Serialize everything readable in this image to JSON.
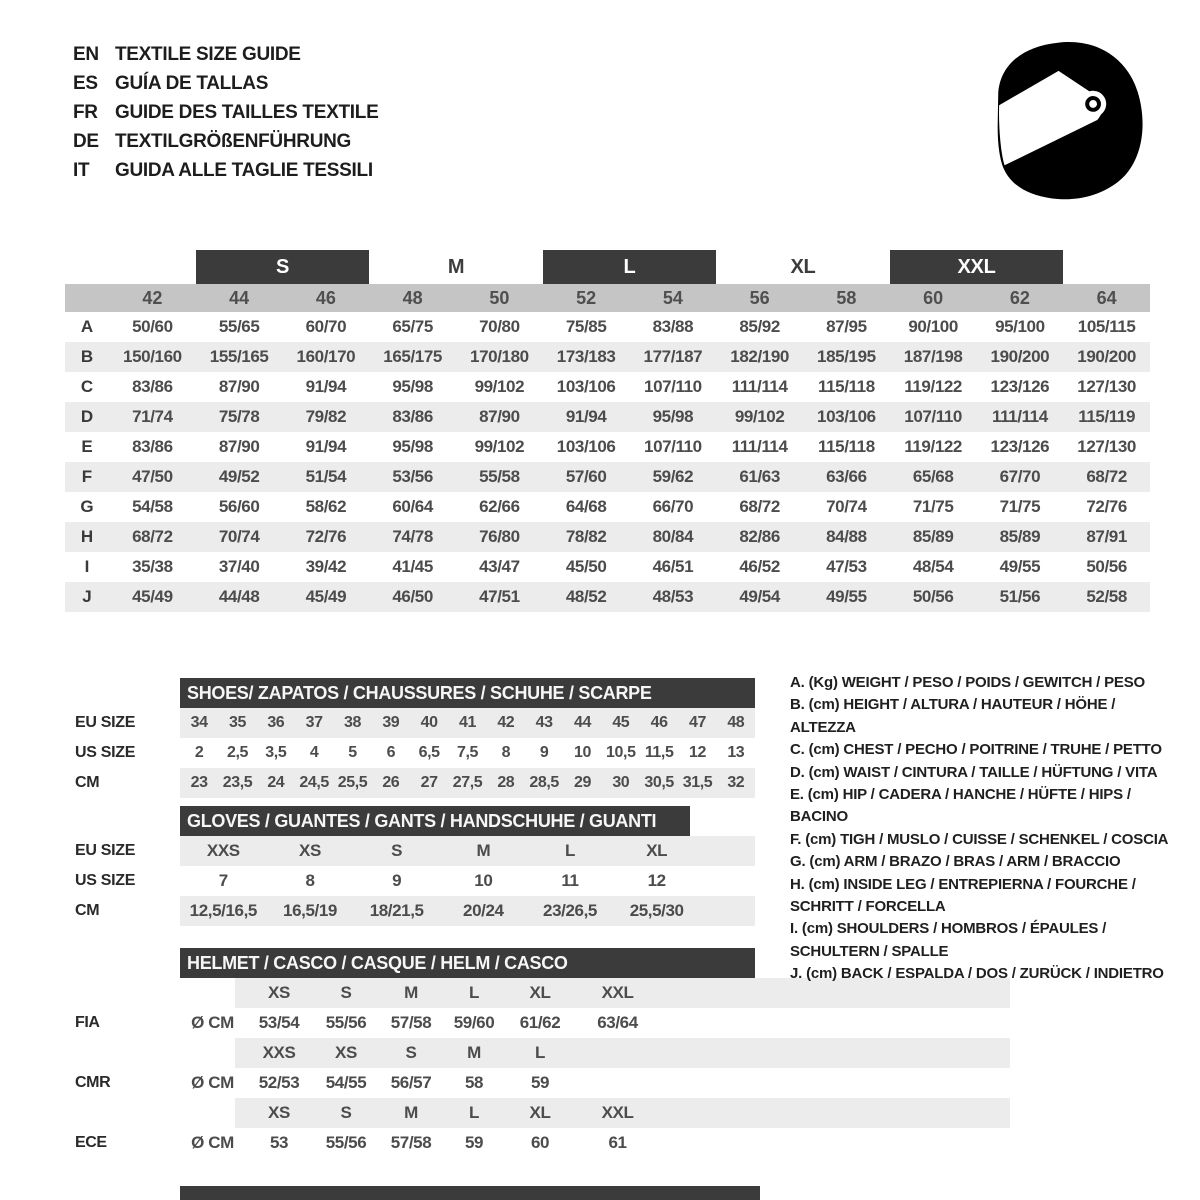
{
  "header": {
    "languages": [
      {
        "code": "EN",
        "title": "TEXTILE SIZE GUIDE"
      },
      {
        "code": "ES",
        "title": "GUÍA DE TALLAS"
      },
      {
        "code": "FR",
        "title": "GUIDE DES TAILLES TEXTILE"
      },
      {
        "code": "DE",
        "title": "TEXTILGRÖßENFÜHRUNG"
      },
      {
        "code": "IT",
        "title": "GUIDA ALLE TAGLIE TESSILI"
      }
    ],
    "icon": "racing-helmet"
  },
  "colors": {
    "dark_bar": "#3b3b3b",
    "number_band": "#c5c5c5",
    "row_stripe": "#ececec"
  },
  "main_table": {
    "size_groups": [
      {
        "label": "S",
        "style": "dark",
        "span_cols": [
          2,
          3
        ]
      },
      {
        "label": "M",
        "style": "plain",
        "span_cols": [
          4,
          5
        ]
      },
      {
        "label": "L",
        "style": "dark",
        "span_cols": [
          6,
          7
        ]
      },
      {
        "label": "XL",
        "style": "plain",
        "span_cols": [
          8,
          9
        ]
      },
      {
        "label": "XXL",
        "style": "dark",
        "span_cols": [
          10,
          11
        ]
      }
    ],
    "numeric_sizes": [
      "42",
      "44",
      "46",
      "48",
      "50",
      "52",
      "54",
      "56",
      "58",
      "60",
      "62",
      "64"
    ],
    "rows": [
      {
        "label": "A",
        "values": [
          "50/60",
          "55/65",
          "60/70",
          "65/75",
          "70/80",
          "75/85",
          "83/88",
          "85/92",
          "87/95",
          "90/100",
          "95/100",
          "105/115"
        ]
      },
      {
        "label": "B",
        "values": [
          "150/160",
          "155/165",
          "160/170",
          "165/175",
          "170/180",
          "173/183",
          "177/187",
          "182/190",
          "185/195",
          "187/198",
          "190/200",
          "190/200"
        ]
      },
      {
        "label": "C",
        "values": [
          "83/86",
          "87/90",
          "91/94",
          "95/98",
          "99/102",
          "103/106",
          "107/110",
          "111/114",
          "115/118",
          "119/122",
          "123/126",
          "127/130"
        ]
      },
      {
        "label": "D",
        "values": [
          "71/74",
          "75/78",
          "79/82",
          "83/86",
          "87/90",
          "91/94",
          "95/98",
          "99/102",
          "103/106",
          "107/110",
          "111/114",
          "115/119"
        ]
      },
      {
        "label": "E",
        "values": [
          "83/86",
          "87/90",
          "91/94",
          "95/98",
          "99/102",
          "103/106",
          "107/110",
          "111/114",
          "115/118",
          "119/122",
          "123/126",
          "127/130"
        ]
      },
      {
        "label": "F",
        "values": [
          "47/50",
          "49/52",
          "51/54",
          "53/56",
          "55/58",
          "57/60",
          "59/62",
          "61/63",
          "63/66",
          "65/68",
          "67/70",
          "68/72"
        ]
      },
      {
        "label": "G",
        "values": [
          "54/58",
          "56/60",
          "58/62",
          "60/64",
          "62/66",
          "64/68",
          "66/70",
          "68/72",
          "70/74",
          "71/75",
          "71/75",
          "72/76"
        ]
      },
      {
        "label": "H",
        "values": [
          "68/72",
          "70/74",
          "72/76",
          "74/78",
          "76/80",
          "78/82",
          "80/84",
          "82/86",
          "84/88",
          "85/89",
          "85/89",
          "87/91"
        ]
      },
      {
        "label": "I",
        "values": [
          "35/38",
          "37/40",
          "39/42",
          "41/45",
          "43/47",
          "45/50",
          "46/51",
          "46/52",
          "47/53",
          "48/54",
          "49/55",
          "50/56"
        ]
      },
      {
        "label": "J",
        "values": [
          "45/49",
          "44/48",
          "45/49",
          "46/50",
          "47/51",
          "48/52",
          "48/53",
          "49/54",
          "49/55",
          "50/56",
          "51/56",
          "52/58"
        ]
      }
    ]
  },
  "shoes": {
    "title": "SHOES/ ZAPATOS / CHAUSSURES / SCHUHE / SCARPE",
    "rows": [
      {
        "label": "EU SIZE",
        "stripe": true,
        "values": [
          "34",
          "35",
          "36",
          "37",
          "38",
          "39",
          "40",
          "41",
          "42",
          "43",
          "44",
          "45",
          "46",
          "47",
          "48"
        ]
      },
      {
        "label": "US SIZE",
        "stripe": false,
        "values": [
          "2",
          "2,5",
          "3,5",
          "4",
          "5",
          "6",
          "6,5",
          "7,5",
          "8",
          "9",
          "10",
          "10,5",
          "11,5",
          "12",
          "13"
        ]
      },
      {
        "label": "CM",
        "stripe": true,
        "values": [
          "23",
          "23,5",
          "24",
          "24,5",
          "25,5",
          "26",
          "27",
          "27,5",
          "28",
          "28,5",
          "29",
          "30",
          "30,5",
          "31,5",
          "32"
        ]
      }
    ]
  },
  "gloves": {
    "title": "GLOVES / GUANTES / GANTS / HANDSCHUHE / GUANTI",
    "rows": [
      {
        "label": "EU SIZE",
        "stripe": true,
        "values": [
          "XXS",
          "XS",
          "S",
          "M",
          "L",
          "XL"
        ]
      },
      {
        "label": "US SIZE",
        "stripe": false,
        "values": [
          "7",
          "8",
          "9",
          "10",
          "11",
          "12"
        ]
      },
      {
        "label": "CM",
        "stripe": true,
        "values": [
          "12,5/16,5",
          "16,5/19",
          "18/21,5",
          "20/24",
          "23/26,5",
          "25,5/30"
        ]
      }
    ]
  },
  "helmet": {
    "title": "HELMET / CASCO / CASQUE / HELM / CASCO",
    "standards": [
      {
        "label": "FIA",
        "unit": "Ø CM",
        "sizes": [
          "XS",
          "S",
          "M",
          "L",
          "XL",
          "XXL"
        ],
        "values": [
          "53/54",
          "55/56",
          "57/58",
          "59/60",
          "61/62",
          "63/64"
        ]
      },
      {
        "label": "CMR",
        "unit": "Ø CM",
        "sizes": [
          "XXS",
          "XS",
          "S",
          "M",
          "L",
          ""
        ],
        "values": [
          "52/53",
          "54/55",
          "56/57",
          "58",
          "59",
          ""
        ]
      },
      {
        "label": "ECE",
        "unit": "Ø CM",
        "sizes": [
          "XS",
          "S",
          "M",
          "L",
          "XL",
          "XXL"
        ],
        "values": [
          "53",
          "55/56",
          "57/58",
          "59",
          "60",
          "61"
        ]
      }
    ]
  },
  "legend": {
    "items": [
      "A. (Kg) WEIGHT / PESO / POIDS / GEWITCH / PESO",
      "B. (cm) HEIGHT / ALTURA / HAUTEUR / HÖHE / ALTEZZA",
      "C. (cm) CHEST / PECHO / POITRINE / TRUHE / PETTO",
      "D. (cm) WAIST / CINTURA / TAILLE / HÜFTUNG / VITA",
      "E. (cm) HIP / CADERA / HANCHE / HÜFTE / HIPS / BACINO",
      "F. (cm) TIGH / MUSLO / CUISSE / SCHENKEL / COSCIA",
      "G. (cm) ARM / BRAZO / BRAS / ARM / BRACCIO",
      "H. (cm) INSIDE LEG / ENTREPIERNA / FOURCHE / SCHRITT / FORCELLA",
      "I. (cm) SHOULDERS / HOMBROS / ÉPAULES / SCHULTERN / SPALLE",
      "J. (cm) BACK / ESPALDA / DOS / ZURÜCK / INDIETRO"
    ]
  }
}
